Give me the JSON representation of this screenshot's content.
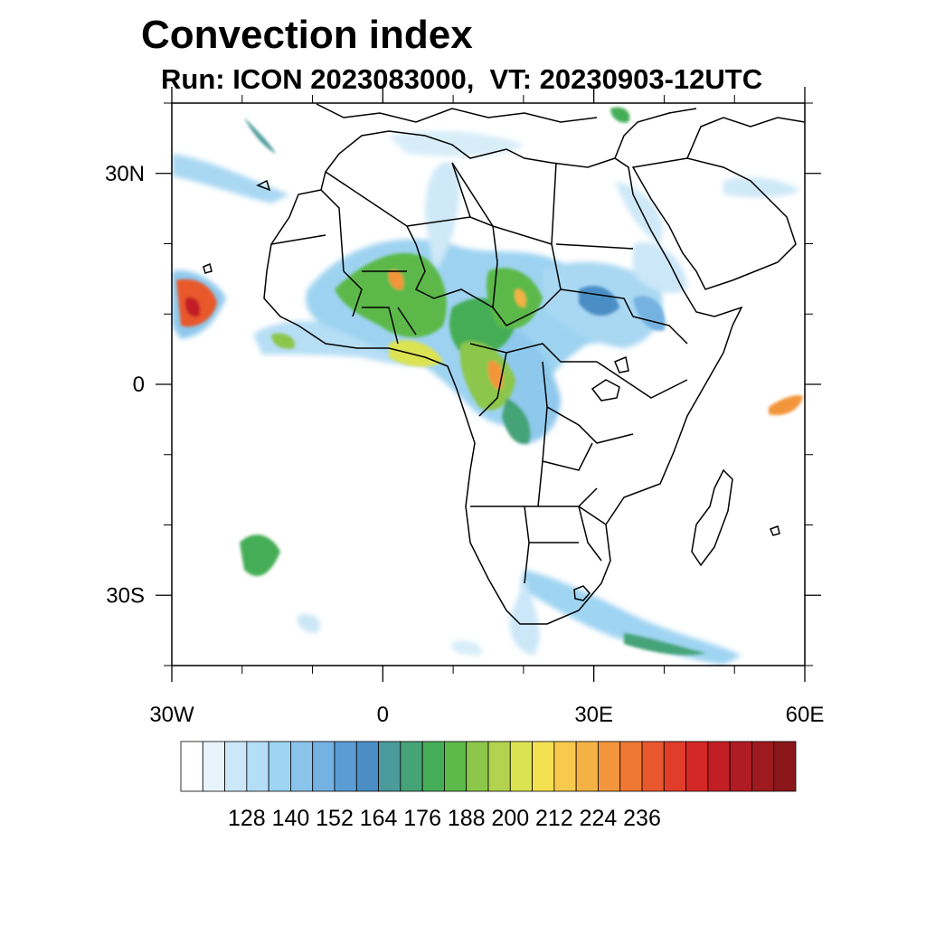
{
  "title": "Convection index",
  "subtitle": "Run: ICON 2023083000,  VT: 20230903-12UTC",
  "map": {
    "lat_range": [
      -40,
      40
    ],
    "lon_range": [
      -30,
      60
    ],
    "lat_ticks": [
      {
        "value": 30,
        "label": "30N"
      },
      {
        "value": 0,
        "label": "0"
      },
      {
        "value": -30,
        "label": "30S"
      }
    ],
    "lon_ticks": [
      {
        "value": -30,
        "label": "30W"
      },
      {
        "value": 0,
        "label": "0"
      },
      {
        "value": 30,
        "label": "30E"
      },
      {
        "value": 60,
        "label": "60E"
      }
    ],
    "minor_lat": [
      40,
      20,
      10,
      -10,
      -20,
      -40
    ],
    "minor_lon": [
      -20,
      -10,
      10,
      20,
      40,
      50
    ]
  },
  "colorbar": {
    "colors": [
      "#ffffff",
      "#e8f4fc",
      "#cbe7f8",
      "#b4def6",
      "#9dd5f3",
      "#8ac4ea",
      "#74b2e2",
      "#5a9cd3",
      "#4a8ec5",
      "#4b9a9c",
      "#45a378",
      "#45ad56",
      "#5cb94a",
      "#8cc64b",
      "#b3d24f",
      "#dbe352",
      "#f4e152",
      "#f8c94d",
      "#f5b244",
      "#f3953b",
      "#ef7734",
      "#e8582c",
      "#e03d2a",
      "#d42827",
      "#c21f25",
      "#b01c23",
      "#9e1a1f",
      "#8b171b"
    ],
    "labels": [
      "128",
      "140",
      "152",
      "164",
      "176",
      "188",
      "200",
      "212",
      "224",
      "236"
    ]
  }
}
